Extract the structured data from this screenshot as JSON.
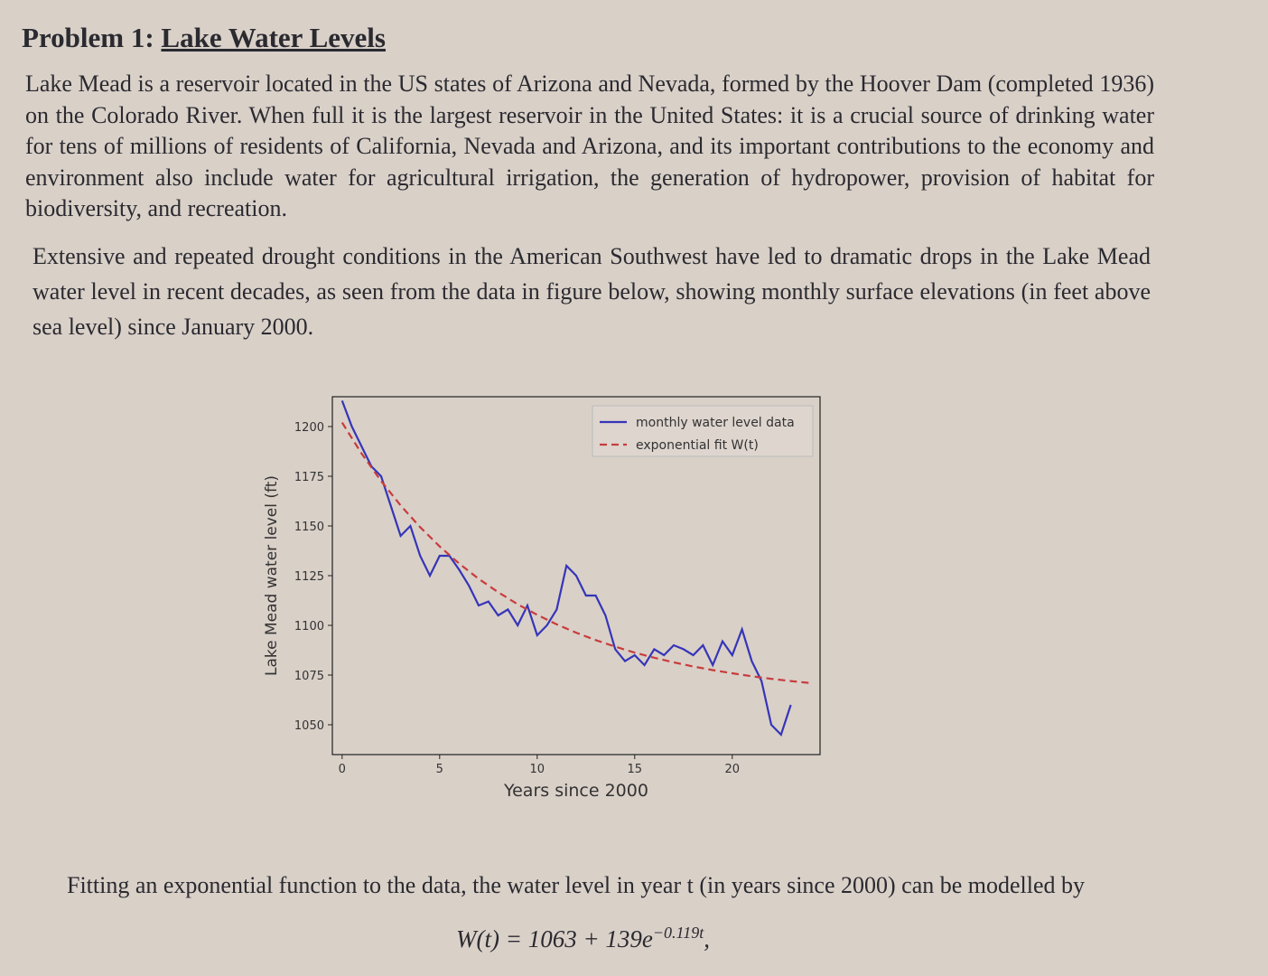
{
  "heading": {
    "number": "Problem 1:",
    "title": "Lake Water Levels"
  },
  "paragraphs": [
    "Lake Mead is a reservoir located in the US states of Arizona and Nevada, formed by the Hoover Dam (completed 1936) on the Colorado River. When full it is the largest reservoir in the United States: it is a crucial source of drinking water for tens of millions of residents of California, Nevada and Arizona, and its important contributions to the economy and environment also include water for agricultural irrigation, the generation of hydropower, provision of habitat for biodiversity, and recreation.",
    "Extensive and repeated drought conditions in the American Southwest have led to dramatic drops in the Lake Mead water level in recent decades, as seen from the data in figure below, showing monthly surface elevations (in feet above sea level) since January 2000."
  ],
  "chart_data": {
    "type": "line",
    "xlabel": "Years since 2000",
    "ylabel": "Lake Mead water level (ft)",
    "xlim": [
      -0.5,
      24.5
    ],
    "ylim": [
      1035,
      1215
    ],
    "xticks": [
      0,
      5,
      10,
      15,
      20
    ],
    "yticks": [
      1050,
      1075,
      1100,
      1125,
      1150,
      1175,
      1200
    ],
    "legend": "upper right",
    "series": [
      {
        "name": "monthly water level data",
        "color": "#3535b8",
        "dash": false,
        "x": [
          0,
          0.5,
          1,
          1.5,
          2,
          2.5,
          3,
          3.5,
          4,
          4.5,
          5,
          5.5,
          6,
          6.5,
          7,
          7.5,
          8,
          8.5,
          9,
          9.5,
          10,
          10.5,
          11,
          11.5,
          12,
          12.5,
          13,
          13.5,
          14,
          14.5,
          15,
          15.5,
          16,
          16.5,
          17,
          17.5,
          18,
          18.5,
          19,
          19.5,
          20,
          20.5,
          21,
          21.5,
          22,
          22.5,
          23
        ],
        "values": [
          1213,
          1200,
          1190,
          1180,
          1175,
          1160,
          1145,
          1150,
          1135,
          1125,
          1135,
          1135,
          1128,
          1120,
          1110,
          1112,
          1105,
          1108,
          1100,
          1110,
          1095,
          1100,
          1108,
          1130,
          1125,
          1115,
          1115,
          1105,
          1088,
          1082,
          1085,
          1080,
          1088,
          1085,
          1090,
          1088,
          1085,
          1090,
          1080,
          1092,
          1085,
          1098,
          1082,
          1072,
          1050,
          1045,
          1060
        ]
      },
      {
        "name": "exponential fit W(t)",
        "color": "#c83c3c",
        "dash": true,
        "x": [
          0,
          1,
          2,
          3,
          4,
          5,
          6,
          7,
          8,
          9,
          10,
          11,
          12,
          13,
          14,
          15,
          16,
          17,
          18,
          19,
          20,
          21,
          22,
          23,
          24
        ],
        "values": [
          1202,
          1186.4,
          1172.6,
          1160.3,
          1149.4,
          1139.7,
          1131.1,
          1123.4,
          1116.7,
          1110.6,
          1105.3,
          1100.5,
          1096.3,
          1092.6,
          1089.3,
          1086.3,
          1083.7,
          1081.4,
          1079.3,
          1077.5,
          1075.9,
          1074.4,
          1073.1,
          1072,
          1071
        ]
      }
    ]
  },
  "closing": "Fitting an exponential function to the data, the water level in year t (in years since 2000) can be modelled by",
  "equation": {
    "main": "W(t) = 1063 + 139e",
    "exponent": "−0.119t",
    "end": ","
  }
}
